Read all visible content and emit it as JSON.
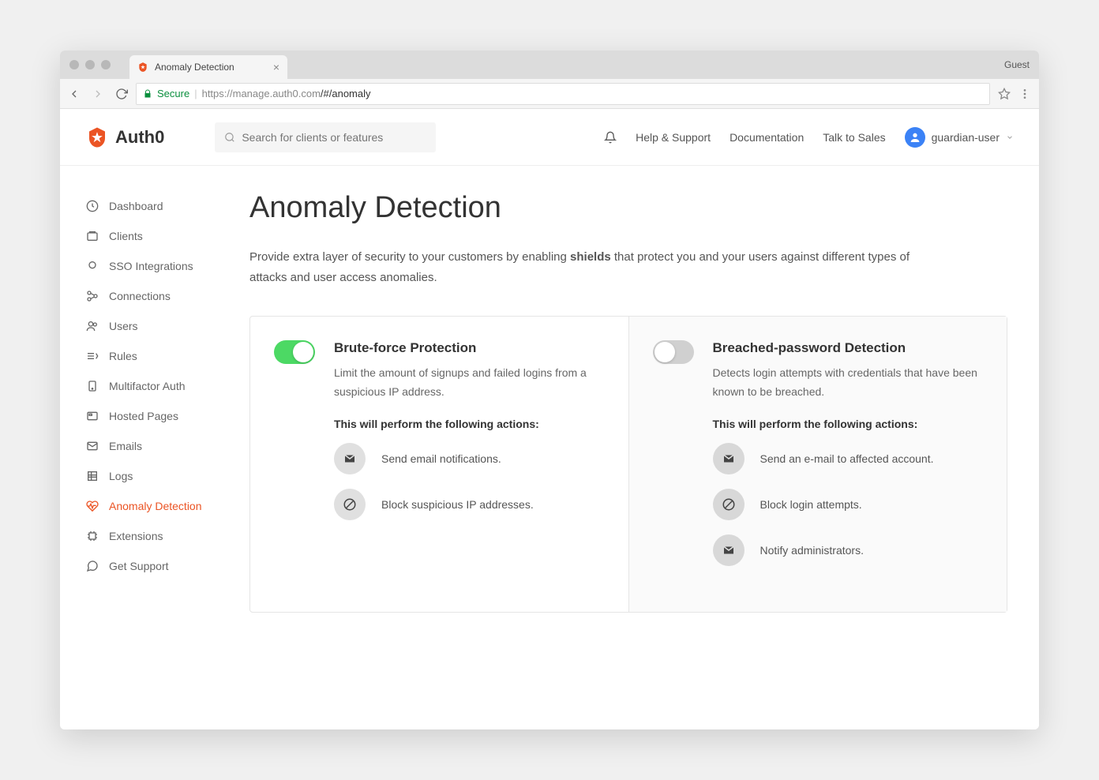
{
  "browser": {
    "tab_title": "Anomaly Detection",
    "guest_label": "Guest",
    "secure_label": "Secure",
    "url_host": "https://manage.auth0.com",
    "url_path": "/#/anomaly"
  },
  "header": {
    "logo_text": "Auth0",
    "search_placeholder": "Search for clients or features",
    "links": {
      "help": "Help & Support",
      "docs": "Documentation",
      "sales": "Talk to Sales"
    },
    "user_name": "guardian-user"
  },
  "sidebar": {
    "items": [
      {
        "label": "Dashboard"
      },
      {
        "label": "Clients"
      },
      {
        "label": "SSO Integrations"
      },
      {
        "label": "Connections"
      },
      {
        "label": "Users"
      },
      {
        "label": "Rules"
      },
      {
        "label": "Multifactor Auth"
      },
      {
        "label": "Hosted Pages"
      },
      {
        "label": "Emails"
      },
      {
        "label": "Logs"
      },
      {
        "label": "Anomaly Detection"
      },
      {
        "label": "Extensions"
      },
      {
        "label": "Get Support"
      }
    ],
    "active_index": 10
  },
  "page": {
    "title": "Anomaly Detection",
    "description_pre": "Provide extra layer of security to your customers by enabling ",
    "description_bold": "shields",
    "description_post": " that protect you and your users against different types of attacks and user access anomalies."
  },
  "cards": [
    {
      "enabled": true,
      "title": "Brute-force Protection",
      "description": "Limit the amount of signups and failed logins from a suspicious IP address.",
      "actions_label": "This will perform the following actions:",
      "actions": [
        {
          "icon": "mail",
          "text": "Send email notifications."
        },
        {
          "icon": "block",
          "text": "Block suspicious IP addresses."
        }
      ]
    },
    {
      "enabled": false,
      "title": "Breached-password Detection",
      "description": "Detects login attempts with credentials that have been known to be breached.",
      "actions_label": "This will perform the following actions:",
      "actions": [
        {
          "icon": "mail",
          "text": "Send an e-mail to affected account."
        },
        {
          "icon": "block",
          "text": "Block login attempts."
        },
        {
          "icon": "mail",
          "text": "Notify administrators."
        }
      ]
    }
  ],
  "colors": {
    "accent": "#eb5424",
    "toggle_on": "#4cd964",
    "toggle_off": "#d0d0d0",
    "text_primary": "#333333",
    "text_secondary": "#666666",
    "border": "#e5e5e5"
  }
}
